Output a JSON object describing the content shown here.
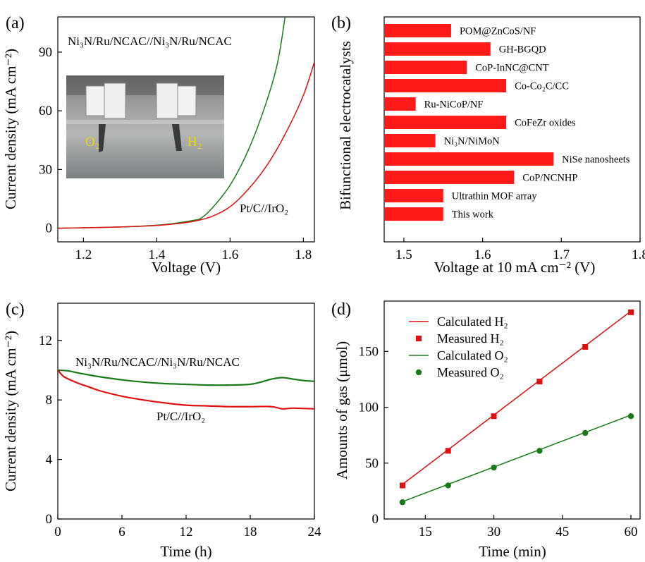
{
  "chart_data": [
    {
      "panel": "(a)",
      "type": "line",
      "xlabel": "Voltage (V)",
      "ylabel": "Current density (mA cm⁻²)",
      "xlim": [
        1.13,
        1.83
      ],
      "ylim": [
        -7,
        108
      ],
      "xticks": [
        1.2,
        1.4,
        1.6,
        1.8
      ],
      "yticks": [
        0,
        30,
        60,
        90
      ],
      "xticklabels": [
        "1.2",
        "1.4",
        "1.6",
        "1.8"
      ],
      "yticklabels": [
        "0",
        "30",
        "60",
        "90"
      ],
      "series": [
        {
          "name": "Ni₃N/Ru/NCAC//Ni₃N/Ru/NCAC",
          "color": "#1a7a1a",
          "x": [
            1.13,
            1.2,
            1.3,
            1.4,
            1.45,
            1.5,
            1.52,
            1.55,
            1.6,
            1.65,
            1.7,
            1.73,
            1.75
          ],
          "y": [
            0,
            0.2,
            0.6,
            1.5,
            2.5,
            4,
            5,
            10,
            22,
            40,
            65,
            85,
            108
          ]
        },
        {
          "name": "Pt/C//IrO₂",
          "color": "#e01010",
          "x": [
            1.13,
            1.2,
            1.3,
            1.4,
            1.45,
            1.5,
            1.55,
            1.6,
            1.65,
            1.7,
            1.75,
            1.8,
            1.83
          ],
          "y": [
            0,
            0.2,
            0.6,
            1.4,
            2.2,
            3.5,
            6,
            11,
            20,
            32,
            48,
            68,
            85
          ]
        }
      ],
      "labels": [
        "Ni₃N/Ru/NCAC//Ni₃N/Ru/NCAC",
        "Pt/C//IrO₂"
      ],
      "inset_labels": [
        "O₂",
        "H₂"
      ]
    },
    {
      "panel": "(b)",
      "type": "bar",
      "orientation": "horizontal",
      "xlabel": "Voltage at 10 mA cm⁻² (V)",
      "ylabel": "Bifunctional electrocatalysts",
      "xlim": [
        1.475,
        1.8
      ],
      "xticks": [
        1.5,
        1.6,
        1.7,
        1.8
      ],
      "xticklabels": [
        "1.5",
        "1.6",
        "1.7",
        "1.8"
      ],
      "color": "#ff1a1a",
      "categories": [
        "POM@ZnCoS/NF",
        "GH-BGQD",
        "CoP-InNC@CNT",
        "Co-Co₂C/CC",
        "Ru-NiCoP/NF",
        "CoFeZr oxides",
        "Ni₃N/NiMoN",
        "NiSe nanosheets",
        "CoP/NCNHP",
        "Ultrathin MOF array",
        "This work"
      ],
      "values": [
        1.56,
        1.61,
        1.58,
        1.63,
        1.515,
        1.63,
        1.54,
        1.69,
        1.64,
        1.55,
        1.55
      ]
    },
    {
      "panel": "(c)",
      "type": "line",
      "xlabel": "Time (h)",
      "ylabel": "Current density (mA cm⁻²)",
      "xlim": [
        0,
        24
      ],
      "ylim": [
        0,
        14.5
      ],
      "xticks": [
        0,
        6,
        12,
        18,
        24
      ],
      "yticks": [
        0,
        4,
        8,
        12
      ],
      "xticklabels": [
        "0",
        "6",
        "12",
        "18",
        "24"
      ],
      "yticklabels": [
        "0",
        "4",
        "8",
        "12"
      ],
      "series": [
        {
          "name": "Ni₃N/Ru/NCAC//Ni₃N/Ru/NCAC",
          "color": "#1a7a1a",
          "x": [
            0,
            1,
            2,
            4,
            6,
            8,
            10,
            12,
            14,
            16,
            18,
            19,
            20,
            21,
            22,
            23,
            24
          ],
          "y": [
            10,
            9.95,
            9.8,
            9.55,
            9.35,
            9.2,
            9.1,
            9.05,
            9.0,
            9.0,
            9.05,
            9.2,
            9.4,
            9.5,
            9.4,
            9.3,
            9.25
          ]
        },
        {
          "name": "Pt/C//IrO₂",
          "color": "#e01010",
          "x": [
            0,
            0.5,
            1,
            2,
            3,
            4,
            6,
            8,
            10,
            12,
            14,
            16,
            18,
            20,
            21,
            22,
            24
          ],
          "y": [
            10,
            9.6,
            9.4,
            9.1,
            8.85,
            8.6,
            8.25,
            8.0,
            7.8,
            7.65,
            7.6,
            7.55,
            7.55,
            7.55,
            7.4,
            7.45,
            7.4
          ]
        }
      ],
      "labels": [
        "Ni₃N/Ru/NCAC//Ni₃N/Ru/NCAC",
        "Pt/C//IrO₂"
      ]
    },
    {
      "panel": "(d)",
      "type": "line",
      "xlabel": "Time (min)",
      "ylabel": "Amounts of gas (μmol)",
      "xlim": [
        6,
        62
      ],
      "ylim": [
        0,
        195
      ],
      "xticks": [
        15,
        30,
        45,
        60
      ],
      "yticks": [
        0,
        50,
        100,
        150
      ],
      "xticklabels": [
        "15",
        "30",
        "45",
        "60"
      ],
      "yticklabels": [
        "0",
        "50",
        "100",
        "150"
      ],
      "legend": "top-left",
      "series": [
        {
          "name": "Calculated H₂",
          "kind": "line",
          "color": "#e01010",
          "x": [
            10,
            20,
            30,
            40,
            50,
            60
          ],
          "y": [
            31,
            62,
            93,
            124,
            155,
            186
          ]
        },
        {
          "name": "Measured H₂",
          "kind": "square",
          "color": "#e01010",
          "x": [
            10,
            20,
            30,
            40,
            50,
            60
          ],
          "y": [
            30,
            61,
            92,
            123,
            154,
            185
          ]
        },
        {
          "name": "Calculated O₂",
          "kind": "line",
          "color": "#1a7a1a",
          "x": [
            10,
            20,
            30,
            40,
            50,
            60
          ],
          "y": [
            15.5,
            31,
            46.5,
            62,
            77.5,
            93
          ]
        },
        {
          "name": "Measured O₂",
          "kind": "circle",
          "color": "#1a7a1a",
          "x": [
            10,
            20,
            30,
            40,
            50,
            60
          ],
          "y": [
            15,
            30,
            46,
            61,
            77,
            92
          ]
        }
      ]
    }
  ]
}
